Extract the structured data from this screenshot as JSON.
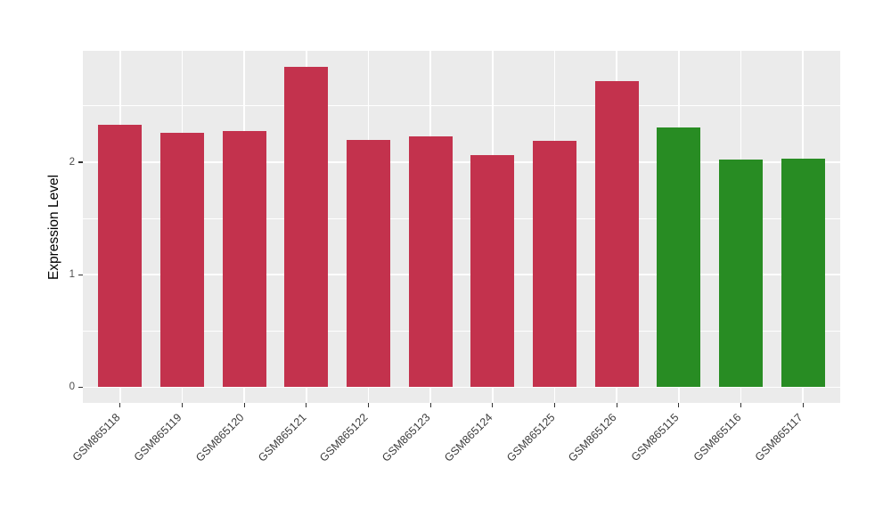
{
  "figure": {
    "background": "#FFFFFF"
  },
  "chart_data": {
    "type": "bar",
    "title": "",
    "xlabel": "",
    "ylabel": "Expression Level",
    "categories": [
      "GSM865118",
      "GSM865119",
      "GSM865120",
      "GSM865121",
      "GSM865122",
      "GSM865123",
      "GSM865124",
      "GSM865125",
      "GSM865126",
      "GSM865115",
      "GSM865116",
      "GSM865117"
    ],
    "values": [
      2.33,
      2.26,
      2.28,
      2.85,
      2.2,
      2.23,
      2.06,
      2.19,
      2.72,
      2.31,
      2.02,
      2.03
    ],
    "bar_colors": [
      "#C3324D",
      "#C3324D",
      "#C3324D",
      "#C3324D",
      "#C3324D",
      "#C3324D",
      "#C3324D",
      "#C3324D",
      "#C3324D",
      "#288C23",
      "#288C23",
      "#288C23"
    ],
    "color_red": "#C3324D",
    "color_green": "#288C23",
    "ylim": [
      -0.14,
      2.99
    ],
    "y_ticks": [
      0,
      1,
      2
    ],
    "y_minor_gridlines": [
      0.5,
      1.5,
      2.5
    ],
    "grid": true,
    "legend": "none",
    "panel_background": "#EBEBEB",
    "gridline_color": "#FFFFFF",
    "tick_mark_color": "#333333",
    "axis_text_color": "#4D4D4D",
    "bar_width_fraction": 0.7,
    "x_label_angle_deg": 45
  }
}
